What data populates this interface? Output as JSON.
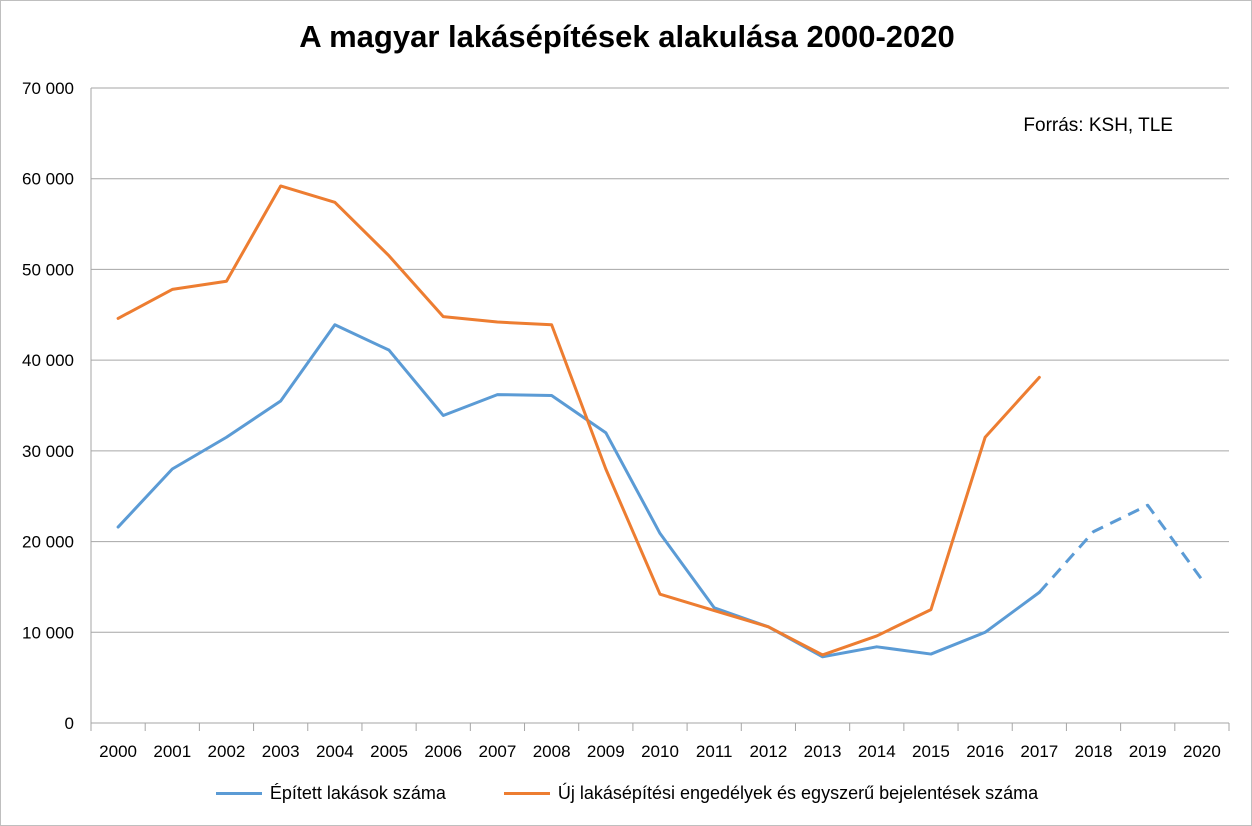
{
  "chart_data": {
    "type": "line",
    "title": "A magyar lakásépítések alakulása 2000-2020",
    "annotation": "Forrás: KSH, TLE",
    "categories": [
      "2000",
      "2001",
      "2002",
      "2003",
      "2004",
      "2005",
      "2006",
      "2007",
      "2008",
      "2009",
      "2010",
      "2011",
      "2012",
      "2013",
      "2014",
      "2015",
      "2016",
      "2017",
      "2018",
      "2019",
      "2020"
    ],
    "ylim": [
      0,
      70000
    ],
    "yticks": [
      0,
      10000,
      20000,
      30000,
      40000,
      50000,
      60000,
      70000
    ],
    "ytick_labels": [
      "0",
      "10 000",
      "20 000",
      "30 000",
      "40 000",
      "50 000",
      "60 000",
      "70 000"
    ],
    "grid": true,
    "legend_position": "bottom",
    "series": [
      {
        "name": "Épített lakások száma",
        "color": "#5b9bd5",
        "values": [
          21600,
          28000,
          31500,
          35500,
          43900,
          41100,
          33900,
          36200,
          36100,
          32000,
          20900,
          12700,
          10600,
          7300,
          8400,
          7600,
          10000,
          14400,
          21100,
          24000,
          15800
        ],
        "dashed_from_index": 18
      },
      {
        "name": "Új lakásépítési engedélyek és egyszerű bejelentések száma",
        "color": "#ed7d31",
        "values": [
          44600,
          47800,
          48700,
          59200,
          57400,
          51500,
          44800,
          44200,
          43900,
          28000,
          14200,
          12400,
          10600,
          7500,
          9600,
          12500,
          31500,
          38100,
          null,
          null,
          null
        ]
      }
    ]
  }
}
